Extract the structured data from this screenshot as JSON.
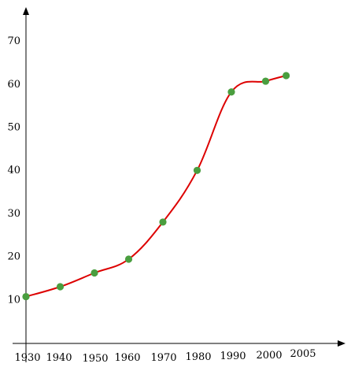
{
  "chart_data": {
    "type": "line",
    "title": "",
    "xlabel": "",
    "ylabel": "",
    "x_ticks": [
      "1930",
      "1940",
      "1950",
      "1960",
      "1970",
      "1980",
      "1990",
      "2000",
      "2005"
    ],
    "y_ticks": [
      "10",
      "20",
      "30",
      "40",
      "50",
      "60",
      "70"
    ],
    "xlim": [
      1930,
      2020
    ],
    "ylim": [
      0,
      77
    ],
    "grid": false,
    "legend": "none",
    "series": [
      {
        "points": [
          {
            "x": 1930,
            "y": 10.5
          },
          {
            "x": 1940,
            "y": 12.8
          },
          {
            "x": 1950,
            "y": 16.0
          },
          {
            "x": 1960,
            "y": 19.2
          },
          {
            "x": 1970,
            "y": 27.8
          },
          {
            "x": 1980,
            "y": 39.8
          },
          {
            "x": 1990,
            "y": 58.0
          },
          {
            "x": 2000,
            "y": 60.5
          },
          {
            "x": 2006,
            "y": 61.8
          }
        ],
        "line_color": "#dd0000",
        "marker_color": "#4a9e3f"
      }
    ]
  }
}
